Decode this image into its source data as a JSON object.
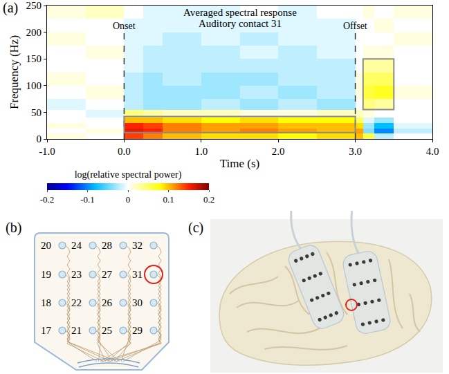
{
  "chart_data": {
    "type": "heatmap",
    "panel_label": "(a)",
    "title": "Averaged spectral response",
    "subtitle": "Auditory contact 31",
    "x_label": "Time (s)",
    "y_label": "Frequency (Hz)",
    "xlim": [
      -1,
      4
    ],
    "ylim": [
      0,
      250
    ],
    "xticks": [
      {
        "value": -1,
        "label": "-1.0"
      },
      {
        "value": 0,
        "label": "0.0"
      },
      {
        "value": 1,
        "label": "1.0"
      },
      {
        "value": 2,
        "label": "2.0"
      },
      {
        "value": 3,
        "label": "3.0"
      },
      {
        "value": 4,
        "label": "4.0"
      }
    ],
    "yticks": [
      0,
      50,
      100,
      150,
      200,
      250
    ],
    "grid": false,
    "x_edges": [
      -1,
      -0.5,
      0,
      0.25,
      0.5,
      1,
      1.5,
      2,
      2.5,
      3,
      3.1,
      3.25,
      3.5,
      4
    ],
    "y_edges": [
      0,
      10,
      20,
      30,
      40,
      55,
      75,
      100,
      125,
      150,
      175,
      200,
      225,
      250
    ],
    "cells": [
      [
        0.01,
        0.0,
        0.14,
        0.12,
        0.1,
        0.09,
        0.09,
        0.08,
        0.09,
        0.1,
        0.06,
        -0.02,
        0.0
      ],
      [
        0.0,
        0.01,
        0.16,
        0.15,
        0.12,
        0.11,
        0.12,
        0.11,
        0.1,
        0.11,
        -0.04,
        -0.1,
        -0.02
      ],
      [
        0.01,
        0.0,
        0.15,
        0.14,
        0.12,
        0.11,
        0.11,
        0.1,
        0.1,
        0.09,
        -0.03,
        -0.08,
        -0.01
      ],
      [
        0.0,
        0.0,
        0.1,
        0.1,
        0.09,
        0.08,
        0.09,
        0.08,
        0.08,
        0.05,
        -0.01,
        -0.03,
        0.0
      ],
      [
        0.0,
        -0.01,
        0.04,
        0.03,
        0.02,
        0.02,
        0.01,
        0.01,
        0.02,
        0.02,
        0.01,
        0.0,
        0.0
      ],
      [
        -0.01,
        0.0,
        -0.02,
        -0.03,
        -0.03,
        -0.02,
        -0.03,
        -0.02,
        -0.03,
        0.0,
        0.04,
        0.03,
        0.0
      ],
      [
        0.0,
        0.01,
        -0.02,
        -0.03,
        -0.03,
        -0.03,
        -0.02,
        -0.03,
        -0.02,
        0.01,
        0.06,
        0.07,
        0.01
      ],
      [
        0.01,
        0.0,
        -0.02,
        -0.03,
        -0.02,
        -0.03,
        -0.03,
        -0.02,
        -0.02,
        0.01,
        0.05,
        0.05,
        0.0
      ],
      [
        0.0,
        0.0,
        -0.01,
        -0.02,
        -0.02,
        -0.02,
        -0.02,
        -0.02,
        -0.02,
        0.0,
        0.03,
        0.03,
        0.0
      ],
      [
        0.0,
        0.01,
        -0.01,
        -0.02,
        -0.02,
        -0.02,
        -0.01,
        -0.02,
        -0.01,
        0.0,
        0.01,
        0.01,
        0.0
      ],
      [
        0.01,
        0.0,
        -0.01,
        -0.01,
        -0.02,
        -0.01,
        -0.02,
        -0.01,
        -0.01,
        0.0,
        0.0,
        0.0,
        0.01
      ],
      [
        0.0,
        0.0,
        -0.01,
        -0.01,
        -0.01,
        -0.01,
        -0.01,
        -0.01,
        -0.01,
        0.0,
        0.0,
        0.01,
        0.0
      ],
      [
        0.01,
        0.02,
        0.0,
        -0.01,
        -0.01,
        -0.01,
        0.0,
        -0.01,
        0.0,
        0.0,
        0.01,
        0.0,
        0.01
      ]
    ],
    "colorbar": {
      "title": "log(relative spectral power)",
      "range": [
        -0.2,
        0.2
      ],
      "ticks": [
        -0.2,
        -0.1,
        0,
        0.1,
        0.2
      ]
    },
    "markers": [
      {
        "x": 0,
        "label": "Onset"
      },
      {
        "x": 3,
        "label": "Offset"
      }
    ],
    "boxes": [
      {
        "x": [
          0,
          3
        ],
        "y": [
          12,
          42
        ]
      },
      {
        "x": [
          3.1,
          3.5
        ],
        "y": [
          55,
          150
        ]
      }
    ]
  },
  "panel_b": {
    "panel_label": "(b)",
    "contacts": [
      [
        20,
        24,
        28,
        32
      ],
      [
        19,
        23,
        27,
        31
      ],
      [
        18,
        22,
        26,
        30
      ],
      [
        17,
        21,
        25,
        29
      ]
    ],
    "highlight": 31
  },
  "panel_c": {
    "panel_label": "(c)"
  }
}
